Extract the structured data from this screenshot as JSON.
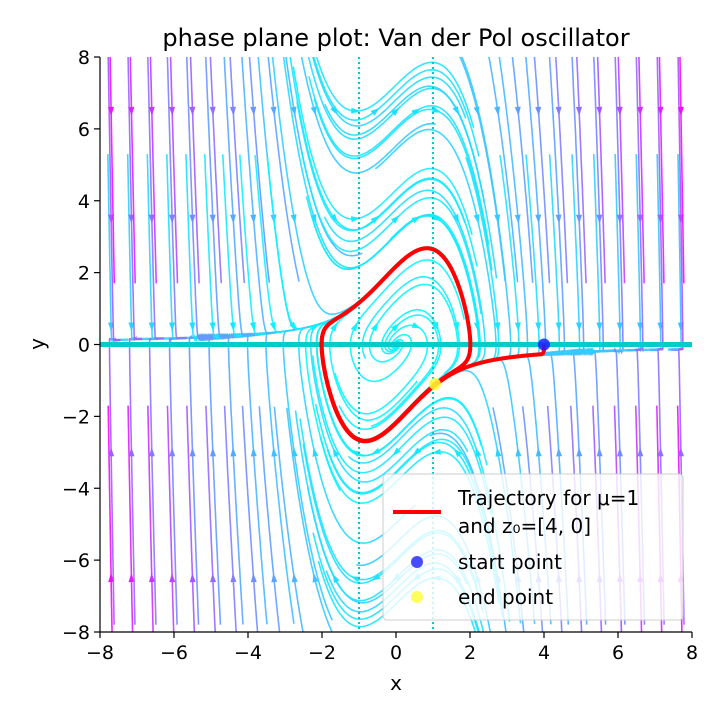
{
  "chart_data": {
    "type": "line",
    "title": "phase plane plot: Van der Pol oscillator",
    "xlabel": "x",
    "ylabel": "y",
    "xlim": [
      -8,
      8
    ],
    "ylim": [
      -8,
      8
    ],
    "xticks": [
      "−8",
      "−6",
      "−4",
      "−2",
      "0",
      "2",
      "4",
      "6",
      "8"
    ],
    "yticks": [
      "−8",
      "−6",
      "−4",
      "−2",
      "0",
      "2",
      "4",
      "6",
      "8"
    ],
    "grid": false,
    "legend_position": "bottom-right",
    "mu": 1,
    "start_point": [
      4,
      0
    ],
    "end_point": [
      1.05,
      -1.1
    ],
    "nullclines_x": [
      -1,
      1
    ],
    "colors": {
      "trajectory": "#ff0000",
      "start": "#1f1fff",
      "end": "#ffff33",
      "stream_low": "#00ffff",
      "stream_high": "#ff00ff",
      "nullcline": "#00cccc"
    },
    "series": [
      {
        "name": "Trajectory for μ=1",
        "name_line2": "and z₀=[4, 0]"
      },
      {
        "name": "start point"
      },
      {
        "name": "end point"
      }
    ]
  }
}
